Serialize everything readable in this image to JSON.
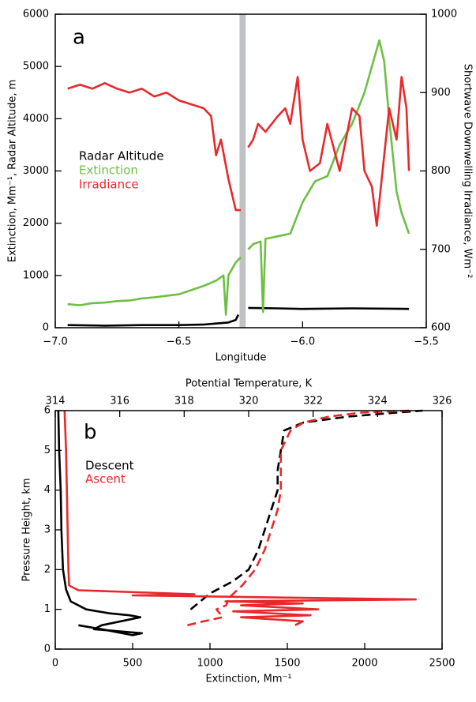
{
  "chart_data": [
    {
      "type": "line",
      "annotation": "a",
      "xlabel": "Longitude",
      "ylabel": "Extinction, Mm⁻¹, Radar Altitude, m",
      "y2label": "Shortwave Downwelling Irradiance, Wm⁻²",
      "xlim": [
        -7.0,
        -5.5
      ],
      "xticks": [
        {
          "value": -7.0,
          "label": "−7.0"
        },
        {
          "value": -6.5,
          "label": "−6.5"
        },
        {
          "value": -6.0,
          "label": "−6.0"
        },
        {
          "value": -5.5,
          "label": "−5.5"
        }
      ],
      "ylim": [
        0,
        6000
      ],
      "yticks": [
        0,
        1000,
        2000,
        3000,
        4000,
        5000,
        6000
      ],
      "y2lim": [
        600,
        1000
      ],
      "y2ticks": [
        600,
        700,
        800,
        900,
        1000
      ],
      "shaded_region": {
        "xmin": -6.255,
        "xmax": -6.23,
        "color": "#bfc1c3"
      },
      "series": [
        {
          "name": "Radar Altitude",
          "color": "#000000",
          "x": [
            -6.95,
            -6.8,
            -6.65,
            -6.5,
            -6.4,
            -6.35,
            -6.3,
            -6.27,
            -6.26,
            -6.24,
            -6.22,
            -6.1,
            -6.0,
            -5.8,
            -5.57
          ],
          "values": [
            50,
            40,
            50,
            50,
            60,
            80,
            100,
            150,
            250,
            null,
            380,
            370,
            360,
            370,
            360
          ]
        },
        {
          "name": "Extinction",
          "color": "#6dbf45",
          "x": [
            -6.95,
            -6.9,
            -6.85,
            -6.8,
            -6.75,
            -6.7,
            -6.65,
            -6.6,
            -6.55,
            -6.5,
            -6.45,
            -6.4,
            -6.35,
            -6.32,
            -6.31,
            -6.3,
            -6.27,
            -6.25,
            -6.24,
            -6.22,
            -6.2,
            -6.17,
            -6.16,
            -6.15,
            -6.1,
            -6.05,
            -6.0,
            -5.95,
            -5.9,
            -5.85,
            -5.8,
            -5.75,
            -5.72,
            -5.69,
            -5.67,
            -5.65,
            -5.62,
            -5.6,
            -5.57
          ],
          "values": [
            450,
            430,
            470,
            480,
            510,
            520,
            560,
            580,
            610,
            640,
            720,
            800,
            900,
            1000,
            250,
            1000,
            1250,
            1350,
            null,
            1500,
            1600,
            1650,
            300,
            1700,
            1750,
            1800,
            2400,
            2800,
            2900,
            3500,
            3900,
            4500,
            5000,
            5500,
            5100,
            4000,
            2600,
            2200,
            1800
          ]
        },
        {
          "name": "Irradiance",
          "color": "#e8282b",
          "axis": "y2",
          "x": [
            -6.95,
            -6.9,
            -6.85,
            -6.8,
            -6.75,
            -6.7,
            -6.65,
            -6.6,
            -6.55,
            -6.5,
            -6.45,
            -6.4,
            -6.37,
            -6.35,
            -6.33,
            -6.3,
            -6.27,
            -6.25,
            -6.24,
            -6.22,
            -6.2,
            -6.18,
            -6.15,
            -6.1,
            -6.07,
            -6.05,
            -6.02,
            -6.0,
            -5.97,
            -5.93,
            -5.9,
            -5.85,
            -5.8,
            -5.77,
            -5.75,
            -5.72,
            -5.7,
            -5.68,
            -5.65,
            -5.62,
            -5.6,
            -5.58,
            -5.57
          ],
          "values": [
            905,
            910,
            905,
            912,
            905,
            900,
            905,
            895,
            900,
            890,
            885,
            880,
            870,
            820,
            840,
            790,
            750,
            750,
            null,
            830,
            840,
            860,
            850,
            870,
            880,
            860,
            920,
            840,
            800,
            810,
            860,
            800,
            880,
            870,
            800,
            780,
            730,
            790,
            880,
            840,
            920,
            880,
            800
          ]
        }
      ]
    },
    {
      "type": "line",
      "annotation": "b",
      "xlabel": "Extinction, Mm⁻¹",
      "x2label": "Potential Temperature, K",
      "ylabel": "Pressure Height, km",
      "xlim": [
        0,
        2500
      ],
      "xticks": [
        0,
        500,
        1000,
        1500,
        2000,
        2500
      ],
      "x2lim": [
        314,
        326
      ],
      "x2ticks": [
        314,
        316,
        318,
        320,
        322,
        324,
        326
      ],
      "ylim": [
        0,
        6
      ],
      "yticks": [
        0,
        1,
        2,
        3,
        4,
        5,
        6
      ],
      "line_style": {
        "extinction": "solid",
        "potential_temperature": "dashed"
      },
      "series": [
        {
          "name": "Descent",
          "color": "#000000",
          "extinction": {
            "x": [
              20,
              25,
              35,
              40,
              50,
              70,
              100,
              200,
              350,
              480,
              550,
              300,
              250,
              560,
              500,
              300,
              150
            ],
            "y": [
              6,
              5,
              4,
              3,
              2,
              1.5,
              1.2,
              1.0,
              0.9,
              0.85,
              0.8,
              0.6,
              0.5,
              0.4,
              0.35,
              0.5,
              0.6
            ]
          },
          "potential_temperature": {
            "x": [
              318.2,
              318.8,
              319.5,
              320.0,
              320.3,
              320.5,
              320.7,
              320.9,
              320.9,
              321.0,
              321.1,
              321.7,
              323.1,
              324.6,
              325.4
            ],
            "y": [
              1.0,
              1.4,
              1.7,
              2.0,
              2.5,
              3.0,
              3.5,
              4.0,
              4.5,
              5.0,
              5.5,
              5.7,
              5.85,
              5.95,
              6.0
            ]
          }
        },
        {
          "name": "Ascent",
          "color": "#e8282b",
          "extinction": {
            "x": [
              60,
              70,
              75,
              80,
              85,
              90,
              150,
              600,
              900,
              500,
              2330,
              1100,
              1600,
              1200,
              1700,
              1150,
              1650,
              1200,
              1600,
              1550
            ],
            "y": [
              6,
              5,
              4,
              3,
              2,
              1.6,
              1.48,
              1.42,
              1.38,
              1.35,
              1.25,
              1.2,
              1.15,
              1.1,
              1.0,
              0.95,
              0.85,
              0.8,
              0.7,
              0.6
            ]
          },
          "potential_temperature": {
            "x": [
              318.1,
              318.6,
              319.2,
              319.0,
              319.3,
              319.4,
              319.8,
              320.2,
              320.5,
              320.7,
              320.9,
              321.0,
              321.0,
              321.0,
              321.3,
              321.7,
              322.5,
              323.5,
              325.0
            ],
            "y": [
              0.6,
              0.7,
              0.8,
              1.0,
              1.1,
              1.3,
              1.6,
              2.0,
              2.5,
              3.0,
              3.5,
              4.0,
              4.5,
              5.0,
              5.5,
              5.7,
              5.85,
              5.95,
              6.0
            ]
          }
        }
      ]
    }
  ]
}
